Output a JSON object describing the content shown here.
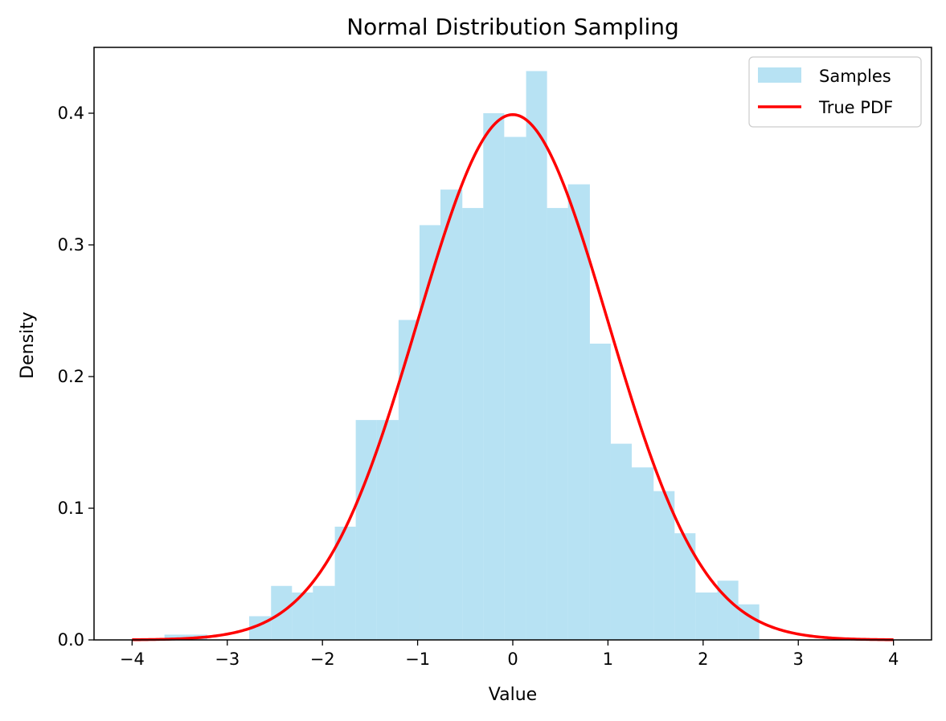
{
  "chart_data": {
    "type": "bar",
    "title": "Normal Distribution Sampling",
    "xlabel": "Value",
    "ylabel": "Density",
    "xlim": [
      -4.4,
      4.4
    ],
    "ylim": [
      0,
      0.45
    ],
    "xticks": [
      -4,
      -3,
      -2,
      -1,
      0,
      1,
      2,
      3,
      4
    ],
    "xtick_labels": [
      "−4",
      "−3",
      "−2",
      "−1",
      "0",
      "1",
      "2",
      "3",
      "4"
    ],
    "yticks": [
      0.0,
      0.1,
      0.2,
      0.3,
      0.4
    ],
    "ytick_labels": [
      "0.0",
      "0.1",
      "0.2",
      "0.3",
      "0.4"
    ],
    "grid": false,
    "legend": "top-right",
    "series": [
      {
        "name": "Samples",
        "kind": "histogram",
        "color": "#87CEEB",
        "opacity": 0.6,
        "bins": [
          {
            "x0": -3.66,
            "x1": -3.44,
            "value": 0.004
          },
          {
            "x0": -3.44,
            "x1": -3.21,
            "value": 0.004
          },
          {
            "x0": -3.21,
            "x1": -2.99,
            "value": 0.0
          },
          {
            "x0": -2.99,
            "x1": -2.77,
            "value": 0.0
          },
          {
            "x0": -2.77,
            "x1": -2.54,
            "value": 0.018
          },
          {
            "x0": -2.54,
            "x1": -2.32,
            "value": 0.041
          },
          {
            "x0": -2.32,
            "x1": -2.1,
            "value": 0.036
          },
          {
            "x0": -2.1,
            "x1": -1.87,
            "value": 0.041
          },
          {
            "x0": -1.87,
            "x1": -1.65,
            "value": 0.086
          },
          {
            "x0": -1.65,
            "x1": -1.43,
            "value": 0.167
          },
          {
            "x0": -1.43,
            "x1": -1.2,
            "value": 0.167
          },
          {
            "x0": -1.2,
            "x1": -0.98,
            "value": 0.243
          },
          {
            "x0": -0.98,
            "x1": -0.76,
            "value": 0.315
          },
          {
            "x0": -0.76,
            "x1": -0.53,
            "value": 0.342
          },
          {
            "x0": -0.53,
            "x1": -0.31,
            "value": 0.328
          },
          {
            "x0": -0.31,
            "x1": -0.09,
            "value": 0.4
          },
          {
            "x0": -0.09,
            "x1": 0.14,
            "value": 0.382
          },
          {
            "x0": 0.14,
            "x1": 0.36,
            "value": 0.432
          },
          {
            "x0": 0.36,
            "x1": 0.58,
            "value": 0.328
          },
          {
            "x0": 0.58,
            "x1": 0.81,
            "value": 0.346
          },
          {
            "x0": 0.81,
            "x1": 1.03,
            "value": 0.225
          },
          {
            "x0": 1.03,
            "x1": 1.25,
            "value": 0.149
          },
          {
            "x0": 1.25,
            "x1": 1.48,
            "value": 0.131
          },
          {
            "x0": 1.48,
            "x1": 1.7,
            "value": 0.113
          },
          {
            "x0": 1.7,
            "x1": 1.92,
            "value": 0.081
          },
          {
            "x0": 1.92,
            "x1": 2.15,
            "value": 0.036
          },
          {
            "x0": 2.15,
            "x1": 2.37,
            "value": 0.045
          },
          {
            "x0": 2.37,
            "x1": 2.59,
            "value": 0.027
          }
        ]
      },
      {
        "name": "True PDF",
        "kind": "line",
        "color": "#FF0000",
        "function": "standard-normal-pdf",
        "x_range": [
          -4,
          4
        ],
        "mean": 0,
        "std": 1
      }
    ]
  }
}
